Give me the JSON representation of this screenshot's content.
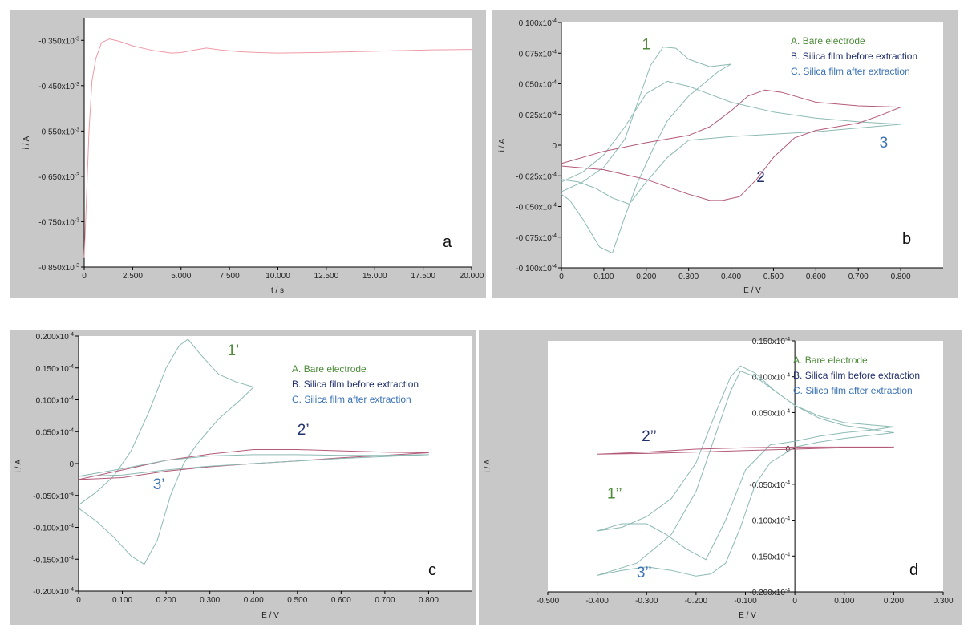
{
  "colors": {
    "green": "#4d8a3a",
    "navy": "#22306e",
    "blue": "#3a72b5",
    "trace_teal": "#8cbab4",
    "trace_red": "#b35a78",
    "trace_pink": "#ef9aa6"
  },
  "legend": [
    {
      "letter": "A.",
      "text": "Bare electrode",
      "color": "#4d8a3a"
    },
    {
      "letter": "B.",
      "text": "Silica film before extraction",
      "color": "#22306e"
    },
    {
      "letter": "C.",
      "text": "Silica film after extraction",
      "color": "#3a72b5"
    }
  ],
  "chart_data": [
    {
      "id": "a",
      "type": "line",
      "panel_letter": "a",
      "xlabel": "t / s",
      "ylabel": "i / A",
      "xlim": [
        0,
        20000
      ],
      "ylim": [
        -0.85,
        -0.3
      ],
      "xticks": [
        0,
        2500,
        5000,
        7500,
        10000,
        12500,
        15000,
        17500,
        20000
      ],
      "xtick_labels": [
        "0",
        "2.500",
        "5.000",
        "7.500",
        "10.000",
        "12.500",
        "15.000",
        "17.500",
        "20.000"
      ],
      "yticks": [
        -0.35,
        -0.45,
        -0.55,
        -0.65,
        -0.75,
        -0.85
      ],
      "ytick_labels": [
        "-0.350x10-3",
        "-0.450x10-3",
        "-0.550x10-3",
        "-0.650x10-3",
        "-0.750x10-3",
        "-0.850x10-3"
      ],
      "series": [
        {
          "color": "#ef9aa6",
          "x": [
            0,
            100,
            250,
            400,
            600,
            900,
            1300,
            1800,
            2500,
            3500,
            4500,
            5000,
            5600,
            6300,
            7000,
            8000,
            9000,
            10000,
            12000,
            14000,
            16000,
            18000,
            20000
          ],
          "y": [
            -0.83,
            -0.72,
            -0.55,
            -0.44,
            -0.39,
            -0.355,
            -0.347,
            -0.352,
            -0.362,
            -0.372,
            -0.378,
            -0.377,
            -0.372,
            -0.367,
            -0.371,
            -0.375,
            -0.377,
            -0.378,
            -0.377,
            -0.375,
            -0.373,
            -0.371,
            -0.37
          ]
        }
      ],
      "labels": []
    },
    {
      "id": "b",
      "type": "line",
      "panel_letter": "b",
      "xlabel": "E / V",
      "ylabel": "i / A",
      "xlim": [
        0,
        0.9
      ],
      "ylim": [
        -0.1,
        0.1
      ],
      "xticks": [
        0,
        0.1,
        0.2,
        0.3,
        0.4,
        0.5,
        0.6,
        0.7,
        0.8
      ],
      "xtick_labels": [
        "0",
        "0.100",
        "0.200",
        "0.300",
        "0.400",
        "0.500",
        "0.600",
        "0.700",
        "0.800"
      ],
      "yticks": [
        0.1,
        0.075,
        0.05,
        0.025,
        0,
        -0.025,
        -0.05,
        -0.075,
        -0.1
      ],
      "ytick_labels": [
        "0.100x10-4",
        "0.075x10-4",
        "0.050x10-4",
        "0.025x10-4",
        "0",
        "-0.025x10-4",
        "-0.050x10-4",
        "-0.075x10-4",
        "-0.100x10-4"
      ],
      "series": [
        {
          "color": "#8cbab4",
          "x": [
            0,
            0.05,
            0.1,
            0.15,
            0.18,
            0.21,
            0.24,
            0.27,
            0.3,
            0.35,
            0.4,
            0.37,
            0.3,
            0.25,
            0.22,
            0.18,
            0.15,
            0.12,
            0.09,
            0.05,
            0.02,
            0
          ],
          "y": [
            -0.038,
            -0.03,
            -0.018,
            0.005,
            0.035,
            0.065,
            0.08,
            0.079,
            0.07,
            0.064,
            0.066,
            0.06,
            0.04,
            0.02,
            0.0,
            -0.03,
            -0.058,
            -0.088,
            -0.083,
            -0.06,
            -0.045,
            -0.04
          ]
        },
        {
          "color": "#8cbab4",
          "x": [
            0,
            0.05,
            0.1,
            0.15,
            0.2,
            0.25,
            0.3,
            0.4,
            0.5,
            0.6,
            0.7,
            0.8,
            0.7,
            0.6,
            0.5,
            0.4,
            0.3,
            0.25,
            0.2,
            0.16,
            0.12,
            0.08,
            0.04,
            0
          ],
          "y": [
            -0.03,
            -0.022,
            -0.008,
            0.015,
            0.042,
            0.052,
            0.048,
            0.035,
            0.027,
            0.022,
            0.019,
            0.017,
            0.014,
            0.011,
            0.009,
            0.007,
            0.004,
            -0.01,
            -0.03,
            -0.048,
            -0.043,
            -0.035,
            -0.03,
            -0.028
          ]
        },
        {
          "color": "#b35a78",
          "x": [
            0,
            0.1,
            0.2,
            0.3,
            0.35,
            0.4,
            0.44,
            0.48,
            0.52,
            0.6,
            0.7,
            0.8,
            0.75,
            0.7,
            0.6,
            0.55,
            0.5,
            0.46,
            0.42,
            0.38,
            0.35,
            0.3,
            0.2,
            0.1,
            0
          ],
          "y": [
            -0.015,
            -0.005,
            0.002,
            0.008,
            0.015,
            0.028,
            0.04,
            0.045,
            0.043,
            0.035,
            0.032,
            0.031,
            0.024,
            0.018,
            0.012,
            0.006,
            -0.01,
            -0.028,
            -0.042,
            -0.045,
            -0.045,
            -0.04,
            -0.028,
            -0.02,
            -0.017
          ]
        }
      ],
      "labels": [
        {
          "text": "1",
          "x": 0.19,
          "y": 0.078,
          "color": "#4d8a3a"
        },
        {
          "text": "2",
          "x": 0.46,
          "y": -0.03,
          "color": "#22306e"
        },
        {
          "text": "3",
          "x": 0.75,
          "y": -0.002,
          "color": "#3a72b5"
        }
      ]
    },
    {
      "id": "c",
      "type": "line",
      "panel_letter": "c",
      "xlabel": "E / V",
      "ylabel": "i / A",
      "xlim": [
        0,
        0.9
      ],
      "ylim": [
        -0.2,
        0.2
      ],
      "xticks": [
        0,
        0.1,
        0.2,
        0.3,
        0.4,
        0.5,
        0.6,
        0.7,
        0.8
      ],
      "xtick_labels": [
        "0",
        "0.100",
        "0.200",
        "0.300",
        "0.400",
        "0.500",
        "0.600",
        "0.700",
        "0.800"
      ],
      "yticks": [
        0.2,
        0.15,
        0.1,
        0.05,
        0,
        -0.05,
        -0.1,
        -0.15,
        -0.2
      ],
      "ytick_labels": [
        "0.200x10-4",
        "0.150x10-4",
        "0.100x10-4",
        "0.050x10-4",
        "0",
        "-0.050x10-4",
        "-0.100x10-4",
        "-0.150x10-4",
        "-0.200x10-4"
      ],
      "series": [
        {
          "color": "#8cbab4",
          "x": [
            0,
            0.04,
            0.08,
            0.12,
            0.16,
            0.2,
            0.23,
            0.25,
            0.28,
            0.32,
            0.36,
            0.4,
            0.37,
            0.32,
            0.27,
            0.24,
            0.21,
            0.18,
            0.15,
            0.12,
            0.08,
            0.04,
            0
          ],
          "y": [
            -0.065,
            -0.045,
            -0.02,
            0.02,
            0.08,
            0.15,
            0.185,
            0.195,
            0.17,
            0.14,
            0.128,
            0.12,
            0.1,
            0.07,
            0.03,
            0.0,
            -0.05,
            -0.12,
            -0.158,
            -0.145,
            -0.115,
            -0.09,
            -0.07
          ]
        },
        {
          "color": "#b35a78",
          "x": [
            0,
            0.1,
            0.2,
            0.3,
            0.4,
            0.5,
            0.6,
            0.7,
            0.8,
            0.7,
            0.6,
            0.5,
            0.4,
            0.3,
            0.2,
            0.1,
            0
          ],
          "y": [
            -0.025,
            -0.01,
            0.005,
            0.015,
            0.022,
            0.022,
            0.02,
            0.018,
            0.017,
            0.013,
            0.009,
            0.004,
            0.0,
            -0.005,
            -0.012,
            -0.022,
            -0.025
          ]
        },
        {
          "color": "#8cbab4",
          "x": [
            0,
            0.1,
            0.2,
            0.3,
            0.4,
            0.5,
            0.6,
            0.7,
            0.8,
            0.7,
            0.6,
            0.5,
            0.4,
            0.3,
            0.2,
            0.1,
            0
          ],
          "y": [
            -0.02,
            -0.008,
            0.005,
            0.012,
            0.014,
            0.014,
            0.013,
            0.013,
            0.014,
            0.011,
            0.008,
            0.004,
            0.0,
            -0.004,
            -0.01,
            -0.018,
            -0.02
          ]
        }
      ],
      "labels": [
        {
          "text": "1’",
          "x": 0.34,
          "y": 0.17,
          "color": "#4d8a3a"
        },
        {
          "text": "2’",
          "x": 0.5,
          "y": 0.045,
          "color": "#22306e"
        },
        {
          "text": "3’",
          "x": 0.17,
          "y": -0.04,
          "color": "#3a72b5"
        }
      ]
    },
    {
      "id": "d",
      "type": "line",
      "panel_letter": "d",
      "xlabel": "E / V",
      "ylabel": "i / A",
      "xlim": [
        -0.5,
        0.3
      ],
      "ylim": [
        -0.2,
        0.15
      ],
      "xticks": [
        -0.5,
        -0.4,
        -0.3,
        -0.2,
        -0.1,
        0,
        0.1,
        0.2,
        0.3
      ],
      "xtick_labels": [
        "-0.500",
        "-0.400",
        "-0.300",
        "-0.200",
        "-0.100",
        "0",
        "0.100",
        "0.200",
        "0.300"
      ],
      "yticks": [
        0.15,
        0.1,
        0.05,
        0,
        -0.05,
        -0.1,
        -0.15,
        -0.2
      ],
      "ytick_labels": [
        "0.150x10-4",
        "0.100x10-4",
        "0.050x10-4",
        "0",
        "-0.050x10-4",
        "-0.100x10-4",
        "-0.150x10-4",
        "-0.200x10-4"
      ],
      "series": [
        {
          "color": "#8cbab4",
          "x": [
            -0.4,
            -0.35,
            -0.3,
            -0.25,
            -0.2,
            -0.16,
            -0.13,
            -0.11,
            -0.08,
            -0.04,
            0.0,
            0.05,
            0.1,
            0.15,
            0.2,
            0.16,
            0.1,
            0.05,
            0.0,
            -0.05,
            -0.1,
            -0.14,
            -0.18,
            -0.22,
            -0.26,
            -0.3,
            -0.35,
            -0.4
          ],
          "y": [
            -0.115,
            -0.11,
            -0.095,
            -0.07,
            -0.02,
            0.05,
            0.1,
            0.115,
            0.105,
            0.08,
            0.06,
            0.045,
            0.036,
            0.033,
            0.03,
            0.026,
            0.022,
            0.017,
            0.01,
            0.005,
            -0.03,
            -0.1,
            -0.155,
            -0.14,
            -0.12,
            -0.105,
            -0.105,
            -0.115
          ]
        },
        {
          "color": "#8cbab4",
          "x": [
            -0.4,
            -0.32,
            -0.25,
            -0.2,
            -0.16,
            -0.13,
            -0.11,
            -0.08,
            -0.04,
            0.0,
            0.05,
            0.1,
            0.2,
            0.15,
            0.1,
            0.05,
            0.0,
            -0.05,
            -0.08,
            -0.11,
            -0.14,
            -0.17,
            -0.2,
            -0.25,
            -0.3,
            -0.35,
            -0.4
          ],
          "y": [
            -0.177,
            -0.16,
            -0.12,
            -0.06,
            0.02,
            0.08,
            0.108,
            0.1,
            0.08,
            0.06,
            0.042,
            0.032,
            0.022,
            0.018,
            0.014,
            0.009,
            0.002,
            -0.02,
            -0.05,
            -0.11,
            -0.16,
            -0.175,
            -0.178,
            -0.17,
            -0.165,
            -0.17,
            -0.177
          ]
        },
        {
          "color": "#b35a78",
          "x": [
            -0.4,
            -0.3,
            -0.2,
            -0.1,
            0.0,
            0.1,
            0.2,
            0.1,
            0.0,
            -0.1,
            -0.2,
            -0.3,
            -0.4
          ],
          "y": [
            -0.008,
            -0.005,
            -0.001,
            0.001,
            0.002,
            0.002,
            0.002,
            0.001,
            -0.001,
            -0.003,
            -0.005,
            -0.007,
            -0.008
          ]
        }
      ],
      "labels": [
        {
          "text": "2’’",
          "x": -0.31,
          "y": 0.01,
          "color": "#22306e"
        },
        {
          "text": "1’’",
          "x": -0.38,
          "y": -0.07,
          "color": "#4d8a3a"
        },
        {
          "text": "3’’",
          "x": -0.32,
          "y": -0.18,
          "color": "#3a72b5"
        }
      ]
    }
  ]
}
